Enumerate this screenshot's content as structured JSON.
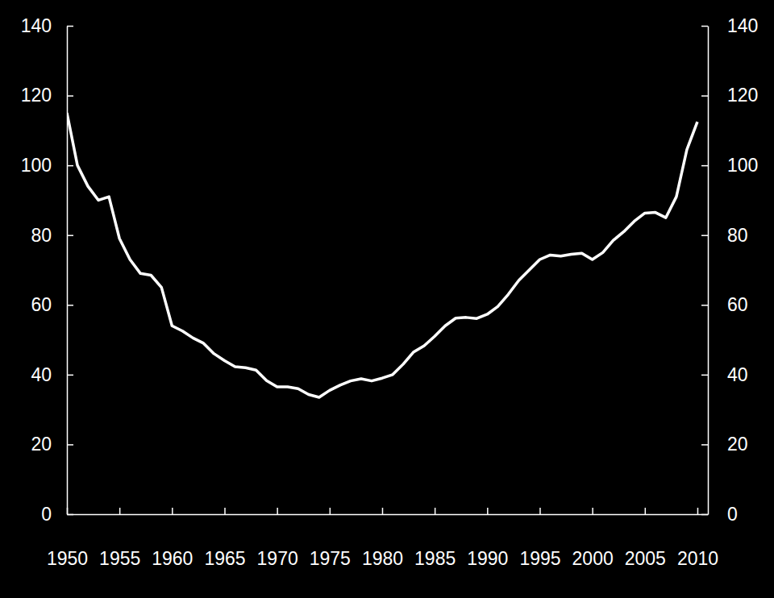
{
  "chart_data": {
    "type": "line",
    "x": [
      1950,
      1951,
      1952,
      1953,
      1954,
      1955,
      1956,
      1957,
      1958,
      1959,
      1960,
      1961,
      1962,
      1963,
      1964,
      1965,
      1966,
      1967,
      1968,
      1969,
      1970,
      1971,
      1972,
      1973,
      1974,
      1975,
      1976,
      1977,
      1978,
      1979,
      1980,
      1981,
      1982,
      1983,
      1984,
      1985,
      1986,
      1987,
      1988,
      1989,
      1990,
      1991,
      1992,
      1993,
      1994,
      1995,
      1996,
      1997,
      1998,
      1999,
      2000,
      2001,
      2002,
      2003,
      2004,
      2005,
      2006,
      2007,
      2008,
      2009,
      2010
    ],
    "values": [
      115,
      100,
      94,
      90,
      91,
      79,
      73,
      69,
      68.5,
      65,
      54,
      52.5,
      50.5,
      49,
      46,
      44,
      42.3,
      42,
      41.3,
      38.3,
      36.5,
      36.5,
      36,
      34.3,
      33.5,
      35.5,
      37,
      38.2,
      38.8,
      38.2,
      39,
      40,
      43,
      46.5,
      48.3,
      51,
      54,
      56.2,
      56.4,
      56.1,
      57.3,
      59.5,
      63,
      67,
      70,
      73,
      74.3,
      74,
      74.5,
      74.8,
      73,
      75,
      78.5,
      81,
      84,
      86.3,
      86.5,
      85,
      91,
      104.5,
      112.5
    ],
    "color": "#ffffff",
    "xlim": [
      1950,
      2011
    ],
    "xticks": [
      1950,
      1955,
      1960,
      1965,
      1970,
      1975,
      1980,
      1985,
      1990,
      1995,
      2000,
      2005,
      2010
    ],
    "ylim": [
      0,
      140
    ],
    "yticks": [
      0,
      20,
      40,
      60,
      80,
      100,
      120,
      140
    ],
    "y2lim": [
      0,
      140
    ],
    "y2ticks": [
      0,
      20,
      40,
      60,
      80,
      100,
      120,
      140
    ]
  }
}
